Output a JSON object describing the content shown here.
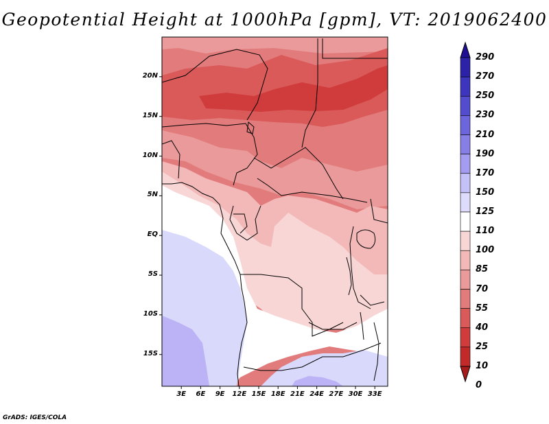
{
  "title": "Geopotential Height at 1000hPa [gpm], VT: 2019062400",
  "credit": "GrADS: IGES/COLA",
  "map": {
    "lat_labels": [
      "20N",
      "15N",
      "10N",
      "5N",
      "EQ",
      "5S",
      "10S",
      "15S"
    ],
    "lon_labels": [
      "3E",
      "6E",
      "9E",
      "12E",
      "15E",
      "18E",
      "21E",
      "24E",
      "27E",
      "30E",
      "33E"
    ],
    "lon_range": [
      0,
      35
    ],
    "lat_range": [
      -19,
      25
    ],
    "grid": false
  },
  "colorbar": {
    "levels": [
      "290",
      "270",
      "250",
      "230",
      "210",
      "190",
      "170",
      "150",
      "125",
      "110",
      "100",
      "85",
      "70",
      "55",
      "40",
      "25",
      "10",
      "0"
    ],
    "colors": [
      "#1e0f95",
      "#2b22a8",
      "#3d35bd",
      "#544ccf",
      "#6d65dc",
      "#877fe6",
      "#a39cf0",
      "#c4c0f8",
      "#dedcfc",
      "#ffffff",
      "#f8d6d6",
      "#f3b9b9",
      "#ea9a9a",
      "#e27b7b",
      "#da5a5a",
      "#d03c3c",
      "#c22a2a",
      "#a81b1b"
    ]
  },
  "fields": {
    "palette": {
      "purple": "#bcb3f6",
      "lavender": "#d9d9fb",
      "white": "#ffffff",
      "pale_pink": "#f8d6d6",
      "light_pink": "#f3b9b9",
      "pink": "#ea9a9a",
      "salmon": "#e27b7b",
      "red": "#da5a5a",
      "deep_red": "#d03c3c"
    }
  }
}
